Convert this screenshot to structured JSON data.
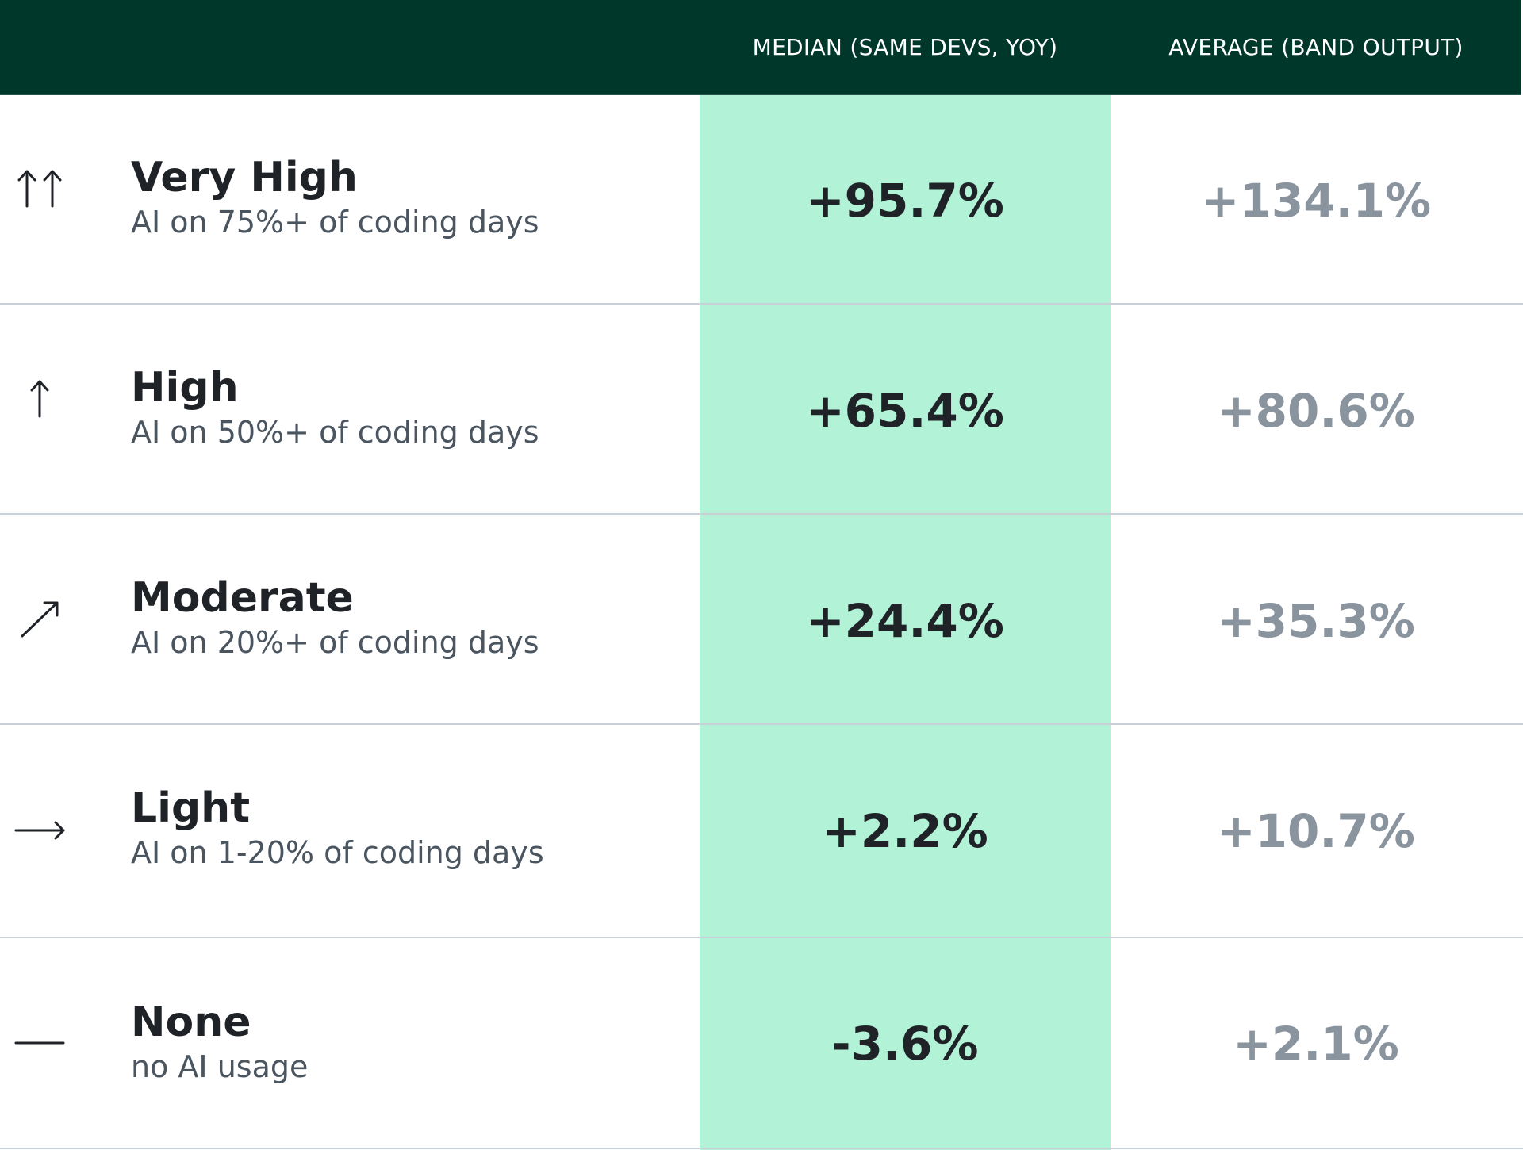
{
  "chart_data": {
    "type": "table",
    "columns": [
      "",
      "MEDIAN (SAME DEVS, YOY)",
      "AVERAGE (BAND OUTPUT)"
    ],
    "rows": [
      {
        "icon": "double-up-arrow-icon",
        "name": "Very High",
        "description": "AI on 75%+ of coding days",
        "median": "+95.7%",
        "average": "+134.1%"
      },
      {
        "icon": "up-arrow-icon",
        "name": "High",
        "description": "AI on 50%+ of coding days",
        "median": "+65.4%",
        "average": "+80.6%"
      },
      {
        "icon": "diagonal-up-arrow-icon",
        "name": "Moderate",
        "description": "AI on 20%+ of coding days",
        "median": "+24.4%",
        "average": "+35.3%"
      },
      {
        "icon": "right-arrow-icon",
        "name": "Light",
        "description": "AI on 1-20% of coding days",
        "median": "+2.2%",
        "average": "+10.7%"
      },
      {
        "icon": "dash-icon",
        "name": "None",
        "description": "no AI usage",
        "median": "-3.6%",
        "average": "+2.1%"
      }
    ],
    "colors": {
      "header_background": "#00372b",
      "median_highlight": "#b2f2d6",
      "median_text": "#1f2328",
      "average_text": "#8a949e"
    }
  }
}
